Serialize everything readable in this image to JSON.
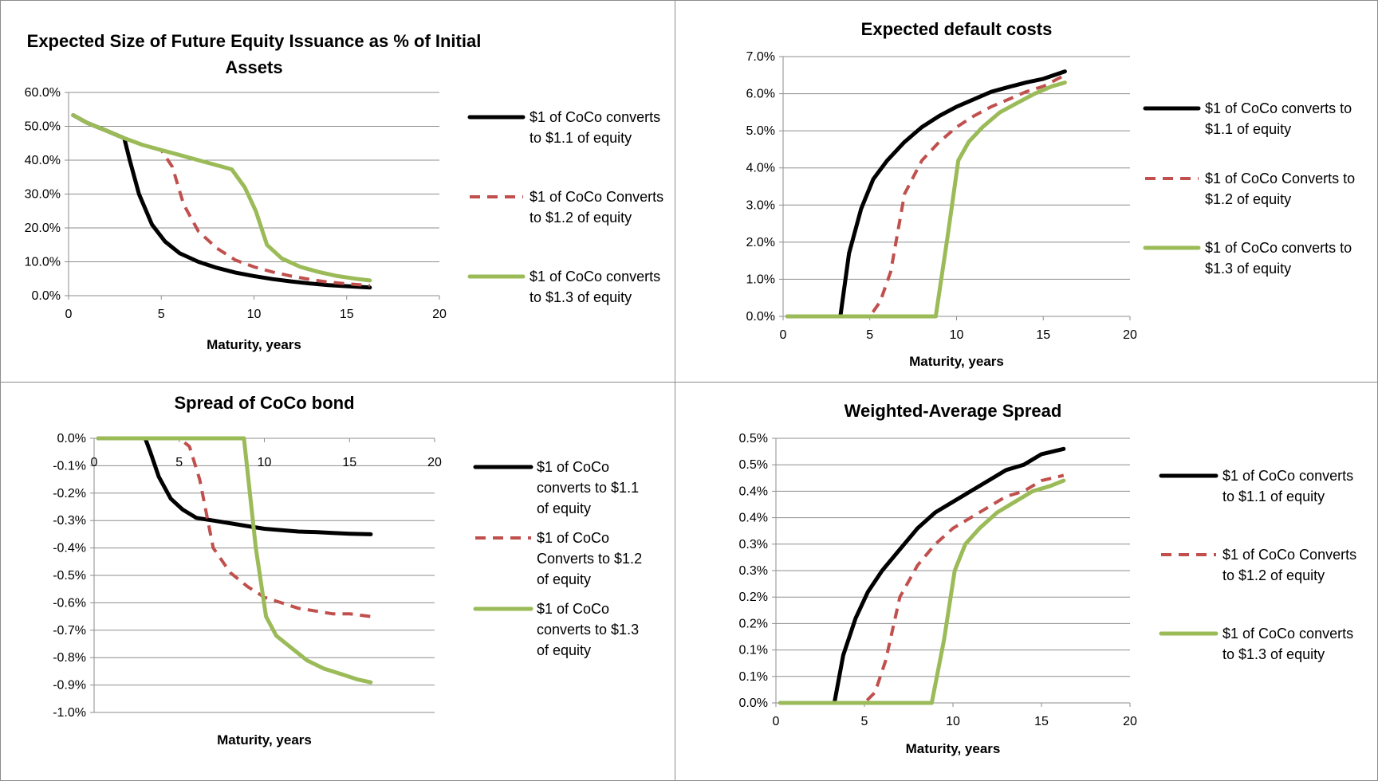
{
  "chart_data": [
    {
      "id": "equity-issuance",
      "type": "line",
      "title": [
        "Expected Size of Future Equity Issuance as % of Initial",
        "Assets"
      ],
      "xlabel": "Maturity, years",
      "ylabel": "",
      "xlim": [
        0,
        20
      ],
      "ylim": [
        0,
        0.6
      ],
      "xticks": [
        0,
        5,
        10,
        15,
        20
      ],
      "xtick_labels": [
        "0",
        "5",
        "10",
        "15",
        "20"
      ],
      "yticks": [
        0,
        0.1,
        0.2,
        0.3,
        0.4,
        0.5,
        0.6
      ],
      "ytick_labels": [
        "0.0%",
        "10.0%",
        "20.0%",
        "30.0%",
        "40.0%",
        "50.0%",
        "60.0%"
      ],
      "grid": "horizontal",
      "legend": "right",
      "series": [
        {
          "name": [
            "$1 of CoCo converts",
            "to $1.1 of equity"
          ],
          "color": "#000000",
          "style": "solid",
          "x": [
            0.25,
            1,
            2,
            3,
            3.3,
            3.8,
            4.5,
            5.2,
            6,
            7,
            8,
            9,
            10,
            11,
            12,
            13,
            14,
            15,
            16.25
          ],
          "y": [
            0.533,
            0.51,
            0.488,
            0.465,
            0.4,
            0.3,
            0.21,
            0.16,
            0.125,
            0.1,
            0.082,
            0.068,
            0.058,
            0.049,
            0.042,
            0.036,
            0.031,
            0.028,
            0.024
          ]
        },
        {
          "name": [
            "$1 of CoCo Converts",
            "to $1.2 of equity"
          ],
          "color": "#c0504d",
          "style": "dashed",
          "x": [
            0.25,
            1,
            2,
            3,
            4,
            5,
            5.6,
            6.2,
            7,
            8,
            9,
            10,
            11,
            12,
            13,
            14,
            15,
            16.25
          ],
          "y": [
            0.533,
            0.51,
            0.488,
            0.465,
            0.445,
            0.43,
            0.38,
            0.27,
            0.19,
            0.14,
            0.105,
            0.085,
            0.07,
            0.058,
            0.048,
            0.04,
            0.035,
            0.03
          ]
        },
        {
          "name": [
            "$1 of CoCo converts",
            "to $1.3 of equity"
          ],
          "color": "#9bbb59",
          "style": "solid",
          "x": [
            0.25,
            1,
            2,
            3,
            4,
            5,
            6,
            7,
            8,
            8.8,
            9.5,
            10.1,
            10.7,
            11.5,
            12.5,
            13.5,
            14.5,
            15.5,
            16.25
          ],
          "y": [
            0.533,
            0.51,
            0.488,
            0.465,
            0.445,
            0.43,
            0.415,
            0.4,
            0.385,
            0.373,
            0.32,
            0.25,
            0.15,
            0.11,
            0.085,
            0.07,
            0.058,
            0.05,
            0.045
          ]
        }
      ]
    },
    {
      "id": "default-costs",
      "type": "line",
      "title": [
        "Expected default costs"
      ],
      "xlabel": "Maturity, years",
      "ylabel": "",
      "xlim": [
        0,
        20
      ],
      "ylim": [
        0,
        0.07
      ],
      "xticks": [
        0,
        5,
        10,
        15,
        20
      ],
      "xtick_labels": [
        "0",
        "5",
        "10",
        "15",
        "20"
      ],
      "yticks": [
        0,
        0.01,
        0.02,
        0.03,
        0.04,
        0.05,
        0.06,
        0.07
      ],
      "ytick_labels": [
        "0.0%",
        "1.0%",
        "2.0%",
        "3.0%",
        "4.0%",
        "5.0%",
        "6.0%",
        "7.0%"
      ],
      "grid": "horizontal",
      "legend": "right",
      "series": [
        {
          "name": [
            "$1 of CoCo converts to",
            "$1.1 of equity"
          ],
          "color": "#000000",
          "style": "solid",
          "x": [
            0.25,
            1,
            2,
            3,
            3.3,
            3.8,
            4.5,
            5.2,
            6,
            7,
            8,
            9,
            10,
            11,
            12,
            13,
            14,
            15,
            16.25
          ],
          "y": [
            0,
            0,
            0,
            0,
            0,
            0.017,
            0.029,
            0.037,
            0.042,
            0.047,
            0.051,
            0.054,
            0.0565,
            0.0585,
            0.0605,
            0.0618,
            0.063,
            0.064,
            0.066
          ]
        },
        {
          "name": [
            "$1 of CoCo Converts to",
            "$1.2 of equity"
          ],
          "color": "#c0504d",
          "style": "dashed",
          "x": [
            0.25,
            1,
            2,
            3,
            4,
            5,
            5.6,
            6.2,
            7,
            8,
            9,
            10,
            11,
            12,
            13,
            14,
            15,
            16.25
          ],
          "y": [
            0,
            0,
            0,
            0,
            0,
            0,
            0.004,
            0.012,
            0.033,
            0.042,
            0.047,
            0.051,
            0.054,
            0.0565,
            0.0585,
            0.0605,
            0.062,
            0.065
          ]
        },
        {
          "name": [
            "$1 of CoCo converts to",
            "$1.3 of equity"
          ],
          "color": "#9bbb59",
          "style": "solid",
          "x": [
            0.25,
            1,
            2,
            3,
            4,
            5,
            6,
            7,
            8,
            8.8,
            9.5,
            10.1,
            10.7,
            11.5,
            12.5,
            13.5,
            14.5,
            15.5,
            16.25
          ],
          "y": [
            0,
            0,
            0,
            0,
            0,
            0,
            0,
            0,
            0,
            0,
            0.022,
            0.042,
            0.047,
            0.051,
            0.055,
            0.0575,
            0.06,
            0.062,
            0.063
          ]
        }
      ]
    },
    {
      "id": "coco-spread",
      "type": "line",
      "title": [
        "Spread of CoCo bond"
      ],
      "xlabel": "Maturity, years",
      "ylabel": "",
      "xlim": [
        0,
        20
      ],
      "ylim": [
        -0.01,
        0
      ],
      "xticks": [
        0,
        5,
        10,
        15,
        20
      ],
      "xtick_labels": [
        "0",
        "5",
        "10",
        "15",
        "20"
      ],
      "yticks": [
        0,
        -0.001,
        -0.002,
        -0.003,
        -0.004,
        -0.005,
        -0.006,
        -0.007,
        -0.008,
        -0.009,
        -0.01
      ],
      "ytick_labels": [
        "0.0%",
        "-0.1%",
        "-0.2%",
        "-0.3%",
        "-0.4%",
        "-0.5%",
        "-0.6%",
        "-0.7%",
        "-0.8%",
        "-0.9%",
        "-1.0%"
      ],
      "grid": "horizontal",
      "legend": "right",
      "series": [
        {
          "name": [
            "$1 of CoCo",
            "converts to $1.1",
            "of equity"
          ],
          "color": "#000000",
          "style": "solid",
          "x": [
            0.25,
            1,
            2,
            3,
            3.3,
            3.8,
            4.5,
            5.2,
            6,
            7,
            8,
            9,
            10,
            11,
            12,
            13,
            14,
            15,
            16.25
          ],
          "y": [
            0,
            0,
            0,
            0,
            -0.0005,
            -0.0014,
            -0.0022,
            -0.0026,
            -0.0029,
            -0.003,
            -0.0031,
            -0.0032,
            -0.0033,
            -0.00335,
            -0.0034,
            -0.00342,
            -0.00345,
            -0.00348,
            -0.0035
          ]
        },
        {
          "name": [
            "$1 of CoCo",
            "Converts to $1.2",
            "of equity"
          ],
          "color": "#c0504d",
          "style": "dashed",
          "x": [
            0.25,
            1,
            2,
            3,
            4,
            5,
            5.6,
            6.2,
            7,
            8,
            9,
            10,
            11,
            12,
            13,
            14,
            15,
            16.25
          ],
          "y": [
            0,
            0,
            0,
            0,
            0,
            0,
            -0.0003,
            -0.0015,
            -0.004,
            -0.0049,
            -0.0054,
            -0.0058,
            -0.006,
            -0.0062,
            -0.0063,
            -0.0064,
            -0.0064,
            -0.0065
          ]
        },
        {
          "name": [
            "$1 of CoCo",
            "converts to $1.3",
            "of equity"
          ],
          "color": "#9bbb59",
          "style": "solid",
          "x": [
            0.25,
            1,
            2,
            3,
            4,
            5,
            6,
            7,
            8,
            8.8,
            9.5,
            10.1,
            10.7,
            11.5,
            12.5,
            13.5,
            14.5,
            15.5,
            16.25
          ],
          "y": [
            0,
            0,
            0,
            0,
            0,
            0,
            0,
            0,
            0,
            0,
            -0.004,
            -0.0065,
            -0.0072,
            -0.0076,
            -0.0081,
            -0.0084,
            -0.0086,
            -0.0088,
            -0.0089
          ]
        }
      ]
    },
    {
      "id": "weighted-spread",
      "type": "line",
      "title": [
        "Weighted-Average Spread"
      ],
      "xlabel": "Maturity, years",
      "ylabel": "",
      "xlim": [
        0,
        20
      ],
      "ylim": [
        0,
        0.005
      ],
      "xticks": [
        0,
        5,
        10,
        15,
        20
      ],
      "xtick_labels": [
        "0",
        "5",
        "10",
        "15",
        "20"
      ],
      "yticks": [
        0,
        0.0005,
        0.001,
        0.0015,
        0.002,
        0.0025,
        0.003,
        0.0035,
        0.004,
        0.0045,
        0.005
      ],
      "ytick_labels": [
        "0.0%",
        "0.1%",
        "0.1%",
        "0.2%",
        "0.2%",
        "0.3%",
        "0.3%",
        "0.4%",
        "0.4%",
        "0.5%",
        "0.5%"
      ],
      "grid": "horizontal",
      "legend": "right",
      "series": [
        {
          "name": [
            "$1 of CoCo converts",
            "to $1.1 of equity"
          ],
          "color": "#000000",
          "style": "solid",
          "x": [
            0.25,
            1,
            2,
            3,
            3.3,
            3.8,
            4.5,
            5.2,
            6,
            7,
            8,
            9,
            10,
            11,
            12,
            13,
            14,
            15,
            16.25
          ],
          "y": [
            0,
            0,
            0,
            0,
            0,
            0.0009,
            0.0016,
            0.0021,
            0.0025,
            0.0029,
            0.0033,
            0.0036,
            0.0038,
            0.004,
            0.0042,
            0.0044,
            0.0045,
            0.0047,
            0.0048
          ]
        },
        {
          "name": [
            "$1 of CoCo Converts",
            "to $1.2 of equity"
          ],
          "color": "#c0504d",
          "style": "dashed",
          "x": [
            0.25,
            1,
            2,
            3,
            4,
            5,
            5.6,
            6.2,
            7,
            8,
            9,
            10,
            11,
            12,
            13,
            14,
            15,
            16.25
          ],
          "y": [
            0,
            0,
            0,
            0,
            0,
            0,
            0.0002,
            0.0008,
            0.002,
            0.0026,
            0.003,
            0.0033,
            0.0035,
            0.0037,
            0.0039,
            0.004,
            0.0042,
            0.0043
          ]
        },
        {
          "name": [
            "$1 of CoCo converts",
            "to $1.3 of equity"
          ],
          "color": "#9bbb59",
          "style": "solid",
          "x": [
            0.25,
            1,
            2,
            3,
            4,
            5,
            6,
            7,
            8,
            8.8,
            9.5,
            10.1,
            10.7,
            11.5,
            12.5,
            13.5,
            14.5,
            15.5,
            16.25
          ],
          "y": [
            0,
            0,
            0,
            0,
            0,
            0,
            0,
            0,
            0,
            0,
            0.0012,
            0.0025,
            0.003,
            0.0033,
            0.0036,
            0.0038,
            0.004,
            0.0041,
            0.0042
          ]
        }
      ]
    }
  ]
}
